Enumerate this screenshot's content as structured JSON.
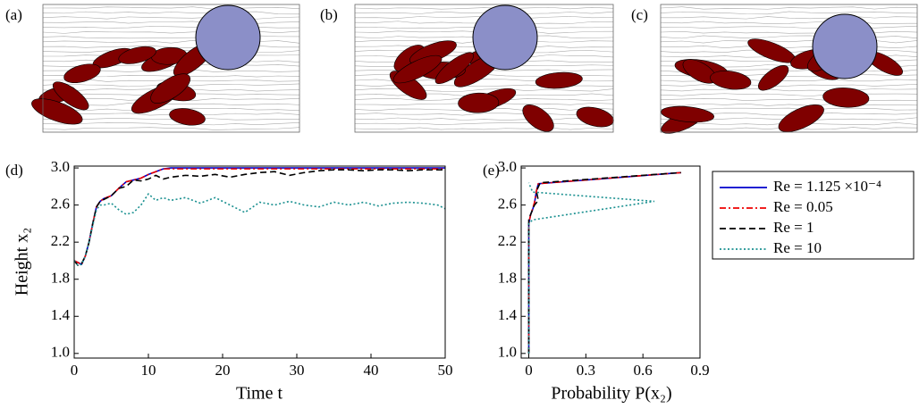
{
  "snapshots": {
    "labels": [
      "(a)",
      "(b)",
      "(c)"
    ]
  },
  "chart_data": [
    {
      "type": "line",
      "label": "(d)",
      "xlabel": "Time t",
      "ylabel": "Height x₂",
      "xlim": [
        0,
        50
      ],
      "xticks": [
        0,
        10,
        20,
        30,
        40,
        50
      ],
      "ylim": [
        0.95,
        3.02
      ],
      "yticks": [
        {
          "value": 1,
          "label": "1.0"
        },
        1.4,
        1.8,
        2.2,
        2.6,
        {
          "value": 3,
          "label": "3.0"
        }
      ],
      "x": [
        0,
        0.5,
        1,
        1.5,
        2,
        2.5,
        3,
        3.5,
        4,
        5,
        6,
        7,
        8,
        9,
        10,
        11,
        12,
        13,
        15,
        17,
        19,
        21,
        23,
        25,
        27,
        29,
        31,
        33,
        35,
        37,
        39,
        41,
        43,
        45,
        47,
        49,
        50
      ],
      "series": [
        {
          "color": "#0000cc",
          "dash": "solid",
          "values": [
            2.0,
            1.98,
            1.96,
            2.05,
            2.2,
            2.4,
            2.58,
            2.64,
            2.67,
            2.7,
            2.78,
            2.85,
            2.87,
            2.89,
            2.93,
            2.96,
            2.99,
            3.0,
            3.0,
            3.0,
            3.0,
            3.0,
            3.0,
            3.0,
            3.0,
            3.0,
            3.0,
            3.0,
            3.0,
            3.0,
            3.0,
            3.0,
            3.0,
            3.0,
            3.0,
            3.0,
            3.0
          ]
        },
        {
          "color": "#ee0000",
          "dash": "dashdot",
          "values": [
            2.0,
            1.98,
            1.96,
            2.05,
            2.2,
            2.4,
            2.58,
            2.64,
            2.67,
            2.7,
            2.78,
            2.85,
            2.87,
            2.89,
            2.93,
            2.96,
            2.99,
            2.99,
            2.99,
            2.99,
            2.99,
            2.99,
            2.99,
            2.99,
            2.99,
            2.99,
            2.99,
            2.99,
            2.99,
            2.99,
            2.99,
            2.99,
            2.99,
            2.99,
            2.99,
            2.99,
            2.99
          ]
        },
        {
          "color": "#000000",
          "dash": "dashed",
          "values": [
            2.0,
            1.95,
            1.97,
            2.05,
            2.2,
            2.4,
            2.58,
            2.64,
            2.66,
            2.7,
            2.78,
            2.8,
            2.87,
            2.86,
            2.88,
            2.92,
            2.88,
            2.9,
            2.92,
            2.91,
            2.93,
            2.9,
            2.93,
            2.95,
            2.96,
            2.92,
            2.95,
            2.97,
            2.98,
            2.98,
            2.97,
            2.98,
            2.98,
            2.97,
            2.98,
            2.98,
            2.98
          ]
        },
        {
          "color": "#1a9090",
          "dash": "dotted",
          "values": [
            2.0,
            1.95,
            1.96,
            2.05,
            2.2,
            2.38,
            2.55,
            2.6,
            2.6,
            2.62,
            2.55,
            2.5,
            2.52,
            2.6,
            2.72,
            2.65,
            2.68,
            2.65,
            2.68,
            2.62,
            2.68,
            2.6,
            2.52,
            2.63,
            2.6,
            2.64,
            2.6,
            2.58,
            2.63,
            2.6,
            2.63,
            2.59,
            2.62,
            2.63,
            2.62,
            2.6,
            2.56
          ]
        }
      ]
    },
    {
      "type": "line",
      "label": "(e)",
      "xlabel": "Probability P(x₂)",
      "xlim": [
        -0.04,
        0.9
      ],
      "xticks": [
        0,
        0.3,
        0.6,
        0.9
      ],
      "ylim": [
        0.95,
        3.02
      ],
      "yticks": [
        {
          "value": 1,
          "label": "1.0"
        },
        1.4,
        1.8,
        2.2,
        2.6,
        {
          "value": 3,
          "label": "3.0"
        }
      ],
      "series": [
        {
          "name": "Re = 1.125 ×10⁻⁴",
          "color": "#0000cc",
          "dash": "solid",
          "x": [
            0,
            0,
            0.01,
            0.02,
            0.03,
            0.04,
            0.05,
            0.8
          ],
          "values": [
            1.0,
            2.4,
            2.5,
            2.55,
            2.62,
            2.75,
            2.83,
            2.95
          ]
        },
        {
          "name": "Re = 0.05",
          "color": "#ee0000",
          "dash": "dashdot",
          "x": [
            0,
            0,
            0.01,
            0.02,
            0.03,
            0.04,
            0.05,
            0.8
          ],
          "values": [
            1.0,
            2.4,
            2.5,
            2.56,
            2.63,
            2.75,
            2.83,
            2.95
          ]
        },
        {
          "name": "Re = 1",
          "color": "#000000",
          "dash": "dashed",
          "x": [
            0,
            0,
            0.02,
            0.03,
            0.05,
            0.04,
            0.06,
            0.8
          ],
          "values": [
            1.0,
            2.45,
            2.55,
            2.6,
            2.65,
            2.75,
            2.84,
            2.95
          ]
        },
        {
          "name": "Re = 10",
          "color": "#1a9090",
          "dash": "dotted",
          "x": [
            0,
            0,
            0.02,
            0.66,
            0.02,
            0
          ],
          "values": [
            1.0,
            2.4,
            2.44,
            2.64,
            2.74,
            2.84
          ]
        }
      ]
    }
  ]
}
